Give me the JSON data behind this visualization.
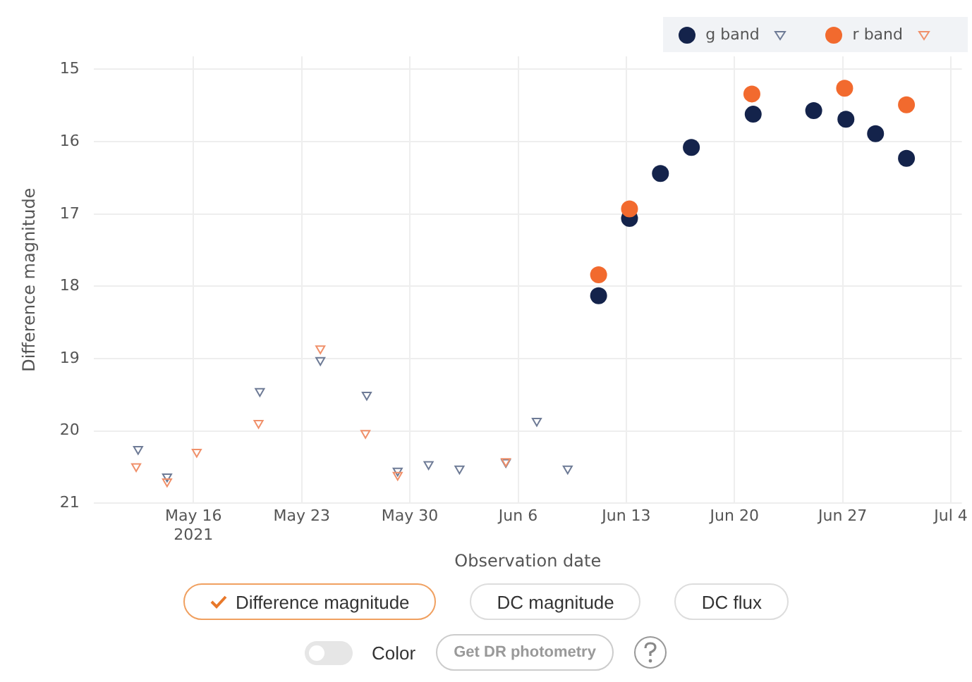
{
  "chart_data": {
    "type": "scatter",
    "xlabel": "Observation date",
    "ylabel": "Difference magnitude",
    "xlim": [
      "2021-05-09T13:00",
      "2021-07-04T17:00"
    ],
    "ylim": [
      21,
      14.82
    ],
    "xticks": [
      {
        "value": "2021-05-16",
        "label": "May 16\n2021"
      },
      {
        "value": "2021-05-23",
        "label": "May 23"
      },
      {
        "value": "2021-05-30",
        "label": "May 30"
      },
      {
        "value": "2021-06-06",
        "label": "Jun 6"
      },
      {
        "value": "2021-06-13",
        "label": "Jun 13"
      },
      {
        "value": "2021-06-20",
        "label": "Jun 20"
      },
      {
        "value": "2021-06-27",
        "label": "Jun 27"
      },
      {
        "value": "2021-07-04",
        "label": "Jul 4"
      }
    ],
    "yticks": [
      15,
      16,
      17,
      18,
      19,
      20,
      21
    ],
    "grid": true,
    "legend": "top right",
    "series": [
      {
        "name": "g band",
        "color": "#14234b",
        "marker": "circle",
        "x": [
          "2021-06-11T05:00",
          "2021-06-13T05:00",
          "2021-06-15T05:00",
          "2021-06-17T05:00",
          "2021-06-21T05:00",
          "2021-06-25T03:00",
          "2021-06-27T05:00",
          "2021-06-29T03:00",
          "2021-07-01T03:00"
        ],
        "values": [
          18.13,
          17.06,
          16.44,
          16.08,
          15.62,
          15.57,
          15.69,
          15.89,
          16.23
        ]
      },
      {
        "color": "#6e7b96",
        "marker": "triangle",
        "x": [
          "2021-05-12T10:00",
          "2021-05-14T07:00",
          "2021-05-20T07:00",
          "2021-05-24T05:00",
          "2021-05-27T05:00",
          "2021-05-29T05:00",
          "2021-05-31T05:00",
          "2021-06-02T05:00",
          "2021-06-05T05:00",
          "2021-06-07T05:00",
          "2021-06-09T05:00"
        ],
        "values": [
          20.25,
          20.63,
          19.45,
          19.02,
          19.5,
          20.55,
          20.46,
          20.52,
          20.43,
          19.86,
          20.52
        ]
      },
      {
        "name": "r band",
        "color": "#f26a2e",
        "marker": "circle",
        "x": [
          "2021-06-11T05:00",
          "2021-06-13T05:00",
          "2021-06-21T03:00",
          "2021-06-27T03:00",
          "2021-07-01T03:00"
        ],
        "values": [
          17.84,
          16.93,
          15.34,
          15.26,
          15.49
        ]
      },
      {
        "color": "#f0906a",
        "marker": "triangle",
        "x": [
          "2021-05-12T07:00",
          "2021-05-14T07:00",
          "2021-05-16T05:00",
          "2021-05-20T05:00",
          "2021-05-24T05:00",
          "2021-05-27T03:00",
          "2021-05-29T05:00",
          "2021-06-05T05:00"
        ],
        "values": [
          20.49,
          20.7,
          20.29,
          19.89,
          18.86,
          20.03,
          20.61,
          20.42
        ]
      }
    ],
    "annotations": [
      "Difference magnitude",
      "DC magnitude",
      "DC flux",
      "Color",
      "Get DR photometry"
    ]
  }
}
